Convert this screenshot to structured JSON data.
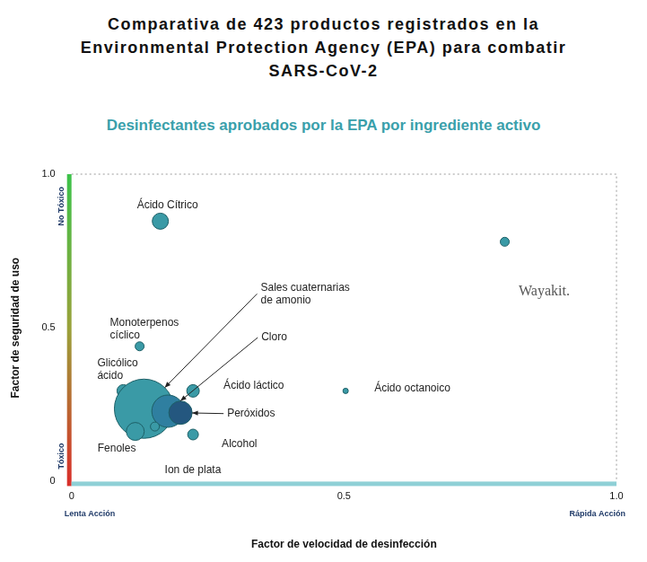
{
  "chart_data": {
    "type": "bubble",
    "title": "Comparativa de 423 productos registrados en la Environmental Protection Agency (EPA) para combatir SARS-CoV-2",
    "subtitle": "Desinfectantes aprobados por la EPA por ingrediente activo",
    "x_label": "Factor de velocidad de desinfección",
    "y_label": "Factor de seguridad de uso",
    "annotations": {
      "x_low": "Lenta Acción",
      "x_high": "Rápida Acción",
      "y_low": "Tóxico",
      "y_high": "No Tóxico"
    },
    "labels": [
      "Ácido Cítrico",
      "Wayakit.",
      "Monoterpenos cíclico",
      "Glicólico ácido",
      "Ácido láctico",
      "Ácido octanoico",
      "Sales cuaternarias de amonio",
      "Cloro",
      "Peróxidos",
      "Fenoles",
      "Alcohol",
      "Ion de plata"
    ],
    "x": [
      0.163,
      0.795,
      0.125,
      0.095,
      0.223,
      0.503,
      0.133,
      0.177,
      0.2,
      0.117,
      0.223,
      0.153
    ],
    "values": [
      0.847,
      0.78,
      0.44,
      0.295,
      0.295,
      0.295,
      0.237,
      0.229,
      0.224,
      0.163,
      0.153,
      0.179
    ],
    "sizes": [
      9,
      5,
      5,
      7,
      7,
      3,
      33,
      18,
      13,
      10,
      6,
      5
    ],
    "colors": [
      "#3a9aa6",
      "#3a9aa6",
      "#3a9aa6",
      "#3a9aa6",
      "#3a9aa6",
      "#3a9aa6",
      "#3a9aa6",
      "#2f7fa0",
      "#24577f",
      "#3a9aa6",
      "#3a9aa6",
      "#3a9aa6"
    ],
    "xlim": [
      0,
      1
    ],
    "ylim": [
      0,
      1
    ],
    "xticks": [
      0,
      0.5,
      {
        "value": 1,
        "label": "1.0"
      }
    ],
    "yticks": [
      0,
      0.5,
      {
        "value": 1,
        "label": "1.0"
      }
    ],
    "grid": false
  }
}
